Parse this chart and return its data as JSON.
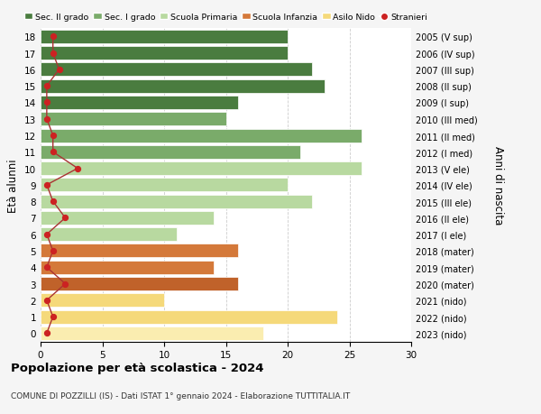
{
  "ages": [
    0,
    1,
    2,
    3,
    4,
    5,
    6,
    7,
    8,
    9,
    10,
    11,
    12,
    13,
    14,
    15,
    16,
    17,
    18
  ],
  "values": [
    18,
    24,
    10,
    16,
    14,
    16,
    11,
    14,
    22,
    20,
    26,
    21,
    26,
    15,
    16,
    23,
    22,
    20,
    20
  ],
  "stranieri": [
    0.5,
    1,
    0.5,
    2,
    0.5,
    1,
    0.5,
    2,
    1,
    0.5,
    3,
    1,
    1,
    0.5,
    0.5,
    0.5,
    1.5,
    1,
    1
  ],
  "bar_colors": [
    "#faedb0",
    "#f5d97a",
    "#f5d97a",
    "#c0622a",
    "#d4793a",
    "#d4793a",
    "#b8d9a0",
    "#b8d9a0",
    "#b8d9a0",
    "#b8d9a0",
    "#b8d9a0",
    "#7aab6a",
    "#7aab6a",
    "#7aab6a",
    "#4a7c3f",
    "#4a7c3f",
    "#4a7c3f",
    "#4a7c3f",
    "#4a7c3f"
  ],
  "right_labels": [
    "2023 (nido)",
    "2022 (nido)",
    "2021 (nido)",
    "2020 (mater)",
    "2019 (mater)",
    "2018 (mater)",
    "2017 (I ele)",
    "2016 (II ele)",
    "2015 (III ele)",
    "2014 (IV ele)",
    "2013 (V ele)",
    "2012 (I med)",
    "2011 (II med)",
    "2010 (III med)",
    "2009 (I sup)",
    "2008 (II sup)",
    "2007 (III sup)",
    "2006 (IV sup)",
    "2005 (V sup)"
  ],
  "legend_labels": [
    "Sec. II grado",
    "Sec. I grado",
    "Scuola Primaria",
    "Scuola Infanzia",
    "Asilo Nido",
    "Stranieri"
  ],
  "legend_colors": [
    "#4a7c3f",
    "#7aab6a",
    "#b8d9a0",
    "#d4793a",
    "#f5d97a",
    "#cc2222"
  ],
  "ylabel": "Età alunni",
  "ylabel_right": "Anni di nascita",
  "title": "Popolazione per età scolastica - 2024",
  "subtitle": "COMUNE DI POZZILLI (IS) - Dati ISTAT 1° gennaio 2024 - Elaborazione TUTTITALIA.IT",
  "xlim": [
    0,
    30
  ],
  "background_color": "#f5f5f5",
  "plot_bg": "#ffffff",
  "stranieri_color": "#cc2222",
  "stranieri_line_color": "#aa3333"
}
